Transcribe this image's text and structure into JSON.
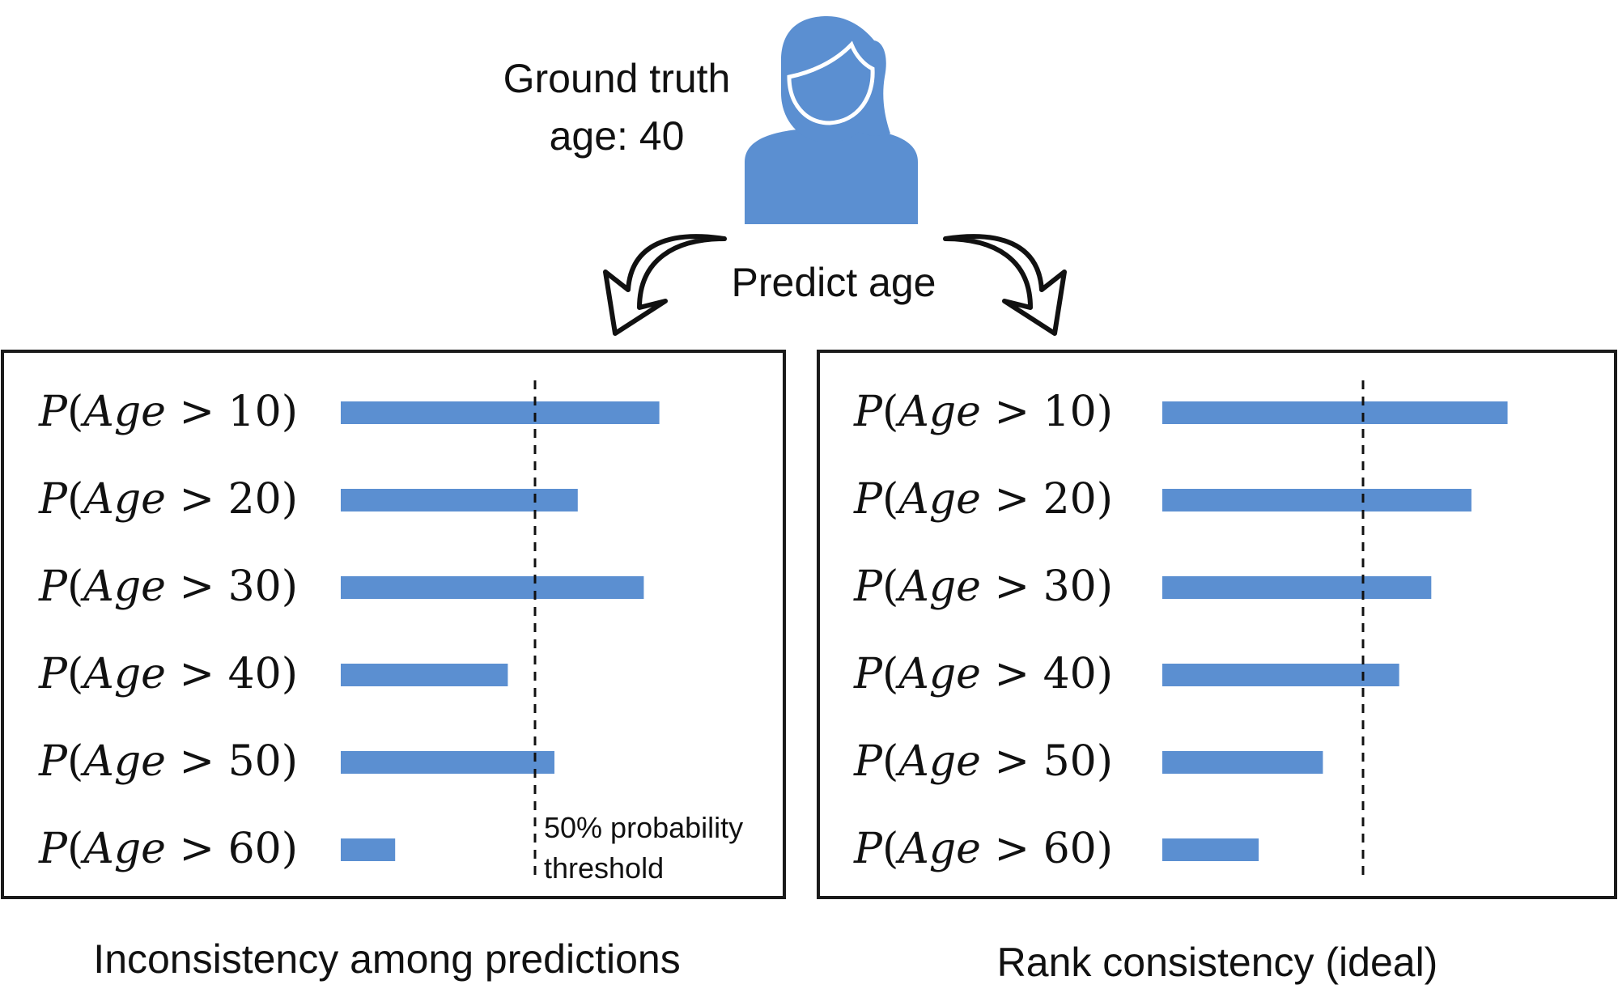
{
  "header": {
    "ground_truth_label": "Ground truth",
    "age_label": "age: 40",
    "predict_label": "Predict age",
    "person_icon": "person-icon",
    "arrow_icon": "curved-arrow-icon"
  },
  "colors": {
    "bar": "#5B8FD1",
    "person": "#5B8FD1",
    "frame": "#1a1a1a"
  },
  "threshold": {
    "value": 0.5,
    "label_line1": "50% probability",
    "label_line2": "threshold"
  },
  "panels": [
    {
      "caption": "Inconsistency among predictions",
      "show_threshold_label": true,
      "rows": [
        {
          "prefix": "P",
          "var": "Age",
          "op": ">",
          "num": "10",
          "value": 0.82
        },
        {
          "prefix": "P",
          "var": "Age",
          "op": ">",
          "num": "20",
          "value": 0.61
        },
        {
          "prefix": "P",
          "var": "Age",
          "op": ">",
          "num": "30",
          "value": 0.78
        },
        {
          "prefix": "P",
          "var": "Age",
          "op": ">",
          "num": "40",
          "value": 0.43
        },
        {
          "prefix": "P",
          "var": "Age",
          "op": ">",
          "num": "50",
          "value": 0.55
        },
        {
          "prefix": "P",
          "var": "Age",
          "op": ">",
          "num": "60",
          "value": 0.14
        }
      ]
    },
    {
      "caption": "Rank consistency (ideal)",
      "show_threshold_label": false,
      "rows": [
        {
          "prefix": "P",
          "var": "Age",
          "op": ">",
          "num": "10",
          "value": 0.86
        },
        {
          "prefix": "P",
          "var": "Age",
          "op": ">",
          "num": "20",
          "value": 0.77
        },
        {
          "prefix": "P",
          "var": "Age",
          "op": ">",
          "num": "30",
          "value": 0.67
        },
        {
          "prefix": "P",
          "var": "Age",
          "op": ">",
          "num": "40",
          "value": 0.59
        },
        {
          "prefix": "P",
          "var": "Age",
          "op": ">",
          "num": "50",
          "value": 0.4
        },
        {
          "prefix": "P",
          "var": "Age",
          "op": ">",
          "num": "60",
          "value": 0.24
        }
      ]
    }
  ]
}
